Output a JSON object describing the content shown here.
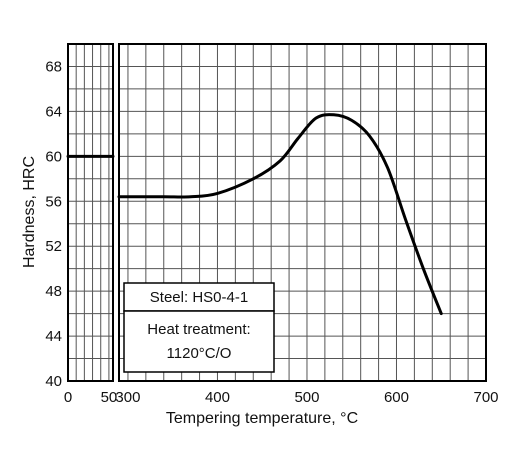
{
  "chart_data": {
    "type": "line",
    "title": "",
    "xlabel": "Tempering temperature, °C",
    "ylabel": "Hardness, HRC",
    "ylim": [
      40,
      70
    ],
    "grid": true,
    "left_panel": {
      "xlim": [
        0,
        55
      ],
      "x_ticks": [
        "0",
        "50"
      ],
      "x_tick_values": [
        0,
        50
      ],
      "series": [
        {
          "x": [
            0,
            55
          ],
          "y": [
            60.0,
            60.0
          ]
        }
      ]
    },
    "right_panel": {
      "xlim": [
        290,
        700
      ],
      "x_ticks": [
        "300",
        "400",
        "500",
        "600",
        "700"
      ],
      "x_tick_values": [
        300,
        400,
        500,
        600,
        700
      ],
      "series": [
        {
          "x": [
            290,
            300,
            340,
            370,
            400,
            440,
            470,
            490,
            510,
            530,
            550,
            570,
            590,
            610,
            630,
            650
          ],
          "y": [
            56.4,
            56.4,
            56.4,
            56.4,
            56.7,
            58.0,
            59.6,
            61.6,
            63.4,
            63.7,
            63.2,
            61.8,
            59.0,
            54.4,
            50.0,
            46.0
          ]
        }
      ]
    },
    "y_ticks": [
      "40",
      "44",
      "48",
      "52",
      "56",
      "60",
      "64",
      "68"
    ],
    "y_tick_values": [
      40,
      44,
      48,
      52,
      56,
      60,
      64,
      68
    ],
    "annotations": {
      "steel": "Steel: HS0-4-1",
      "treatment_line1": "Heat treatment:",
      "treatment_line2": "1120°C/O"
    }
  }
}
